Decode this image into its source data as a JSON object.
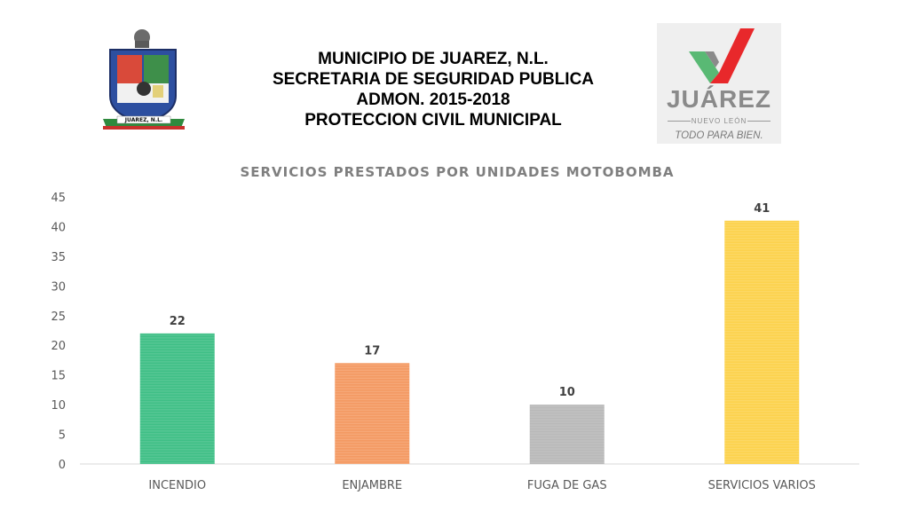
{
  "header": {
    "line1": "MUNICIPIO DE JUAREZ, N.L.",
    "line2": "SECRETARIA DE SEGURIDAD PUBLICA",
    "line3": "ADMON. 2015-2018",
    "line4": "PROTECCION CIVIL MUNICIPAL"
  },
  "seal": {
    "banner_text": "JUAREZ, N.L."
  },
  "logo": {
    "word": "JUÁREZ",
    "region": "NUEVO LEÓN",
    "slogan": "TODO PARA BIEN.",
    "check_colors": {
      "green": "#59b974",
      "red": "#e8282b"
    }
  },
  "chart_data": {
    "type": "bar",
    "title": "SERVICIOS PRESTADOS POR UNIDADES MOTOBOMBA",
    "xlabel": "",
    "ylabel": "",
    "categories": [
      "INCENDIO",
      "ENJAMBRE",
      "FUGA DE GAS",
      "SERVICIOS VARIOS"
    ],
    "values": [
      22,
      17,
      10,
      41
    ],
    "data_labels": [
      "22",
      "17",
      "10",
      "41"
    ],
    "bar_colors": [
      "#3fbf86",
      "#f49a63",
      "#b9b9b9",
      "#fcd24d"
    ],
    "ylim": [
      0,
      45
    ],
    "yticks": [
      0,
      5,
      10,
      15,
      20,
      25,
      30,
      35,
      40,
      45
    ],
    "grid": false,
    "legend": "none"
  }
}
